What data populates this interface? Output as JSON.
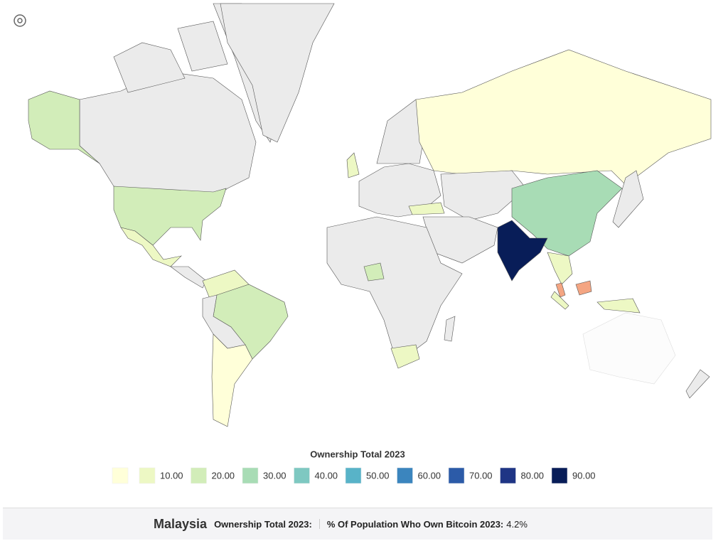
{
  "legend": {
    "title": "Ownership Total 2023",
    "items": [
      {
        "color": "#ffffd9"
      },
      {
        "color": "#edf8c4",
        "label": "10.00"
      },
      {
        "color": "#d2edb9",
        "label": "20.00"
      },
      {
        "color": "#a8dcb5",
        "label": "30.00"
      },
      {
        "color": "#7ec8c1",
        "label": "40.00"
      },
      {
        "color": "#58b3c8",
        "label": "50.00"
      },
      {
        "color": "#3b85be",
        "label": "60.00"
      },
      {
        "color": "#2c5ba8",
        "label": "70.00"
      },
      {
        "color": "#1f3585",
        "label": "80.00"
      },
      {
        "color": "#081d58",
        "label": "90.00"
      }
    ]
  },
  "tooltip": {
    "country": "Malaysia",
    "field1": "Ownership Total 2023:",
    "field2": "% Of Population Who Own Bitcoin 2023:",
    "field2_value": "4.2%"
  }
}
